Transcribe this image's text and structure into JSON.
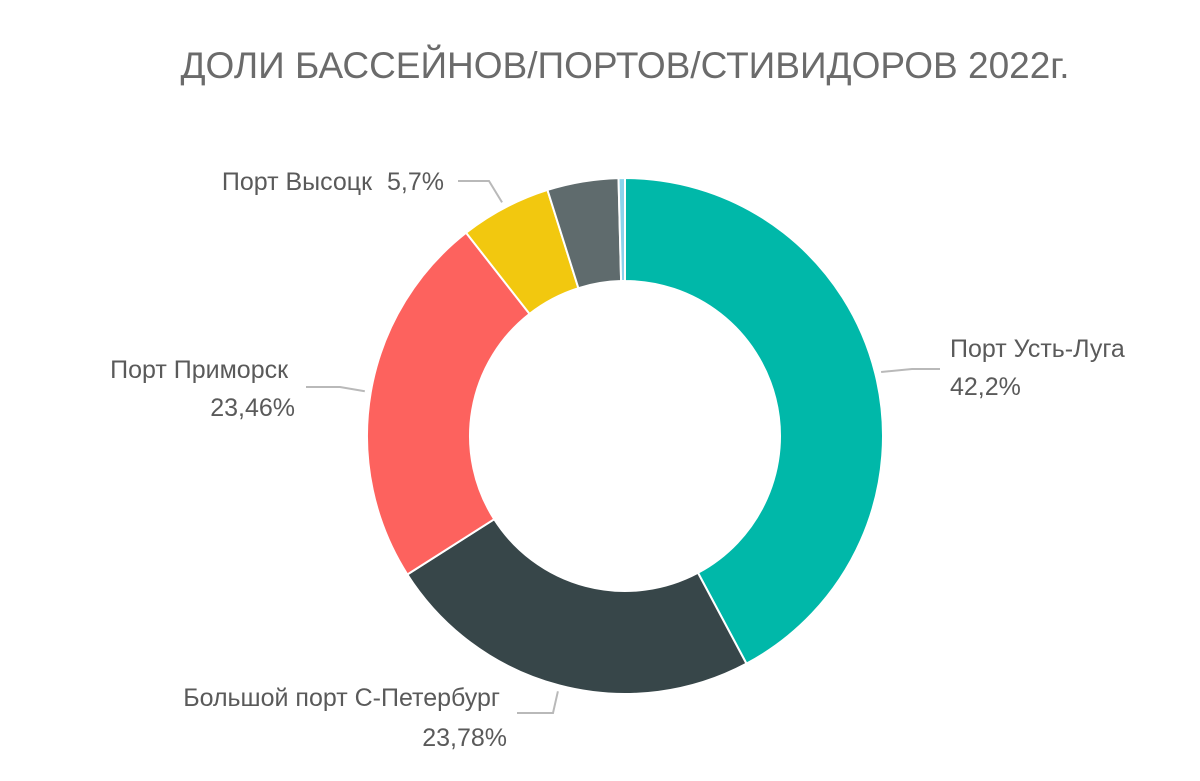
{
  "chart_data": {
    "type": "pie",
    "title": "ДОЛИ БАССЕЙНОВ/ПОРТОВ/СТИВИДОРОВ 2022г.",
    "donut": true,
    "legend": "none",
    "slices": [
      {
        "name": "Порт Усть-Луга",
        "value": 42.2,
        "value_label": "42,2%",
        "color": "#00b8a9"
      },
      {
        "name": "Большой порт С-Петербург",
        "value": 23.78,
        "value_label": "23,78%",
        "color": "#374649"
      },
      {
        "name": "Порт Приморск",
        "value": 23.46,
        "value_label": "23,46%",
        "color": "#fd625e"
      },
      {
        "name": "Порт Высоцк",
        "value": 5.7,
        "value_label": "5,7%",
        "color": "#f2c80f"
      },
      {
        "name": "",
        "value": 4.46,
        "value_label": "",
        "color": "#5f6b6d"
      },
      {
        "name": "",
        "value": 0.4,
        "value_label": "",
        "color": "#8ad4eb"
      }
    ]
  }
}
